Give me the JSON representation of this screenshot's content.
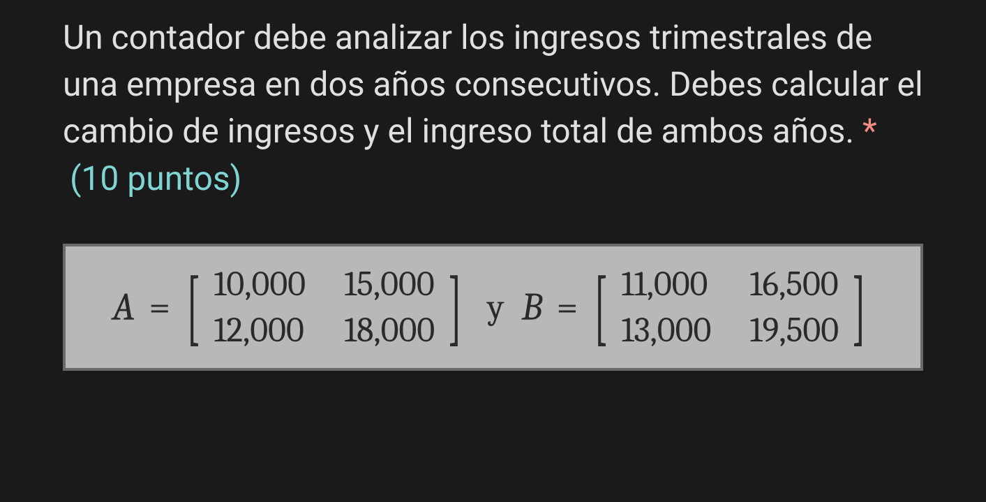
{
  "question": {
    "text": "Un contador debe analizar los ingresos trimestrales de una empresa en dos años consecutivos. Debes calcular el cambio de ingresos y el ingreso total de ambos años.",
    "required_marker": "*",
    "points_label": "(10 puntos)"
  },
  "matrices": {
    "A": {
      "label": "A",
      "equals": "=",
      "rows": [
        [
          "10,000",
          "15,000"
        ],
        [
          "12,000",
          "18,000"
        ]
      ]
    },
    "conjunction": "y",
    "B": {
      "label": "B",
      "equals": "=",
      "rows": [
        [
          "11,000",
          "16,500"
        ],
        [
          "13,000",
          "19,500"
        ]
      ]
    }
  },
  "colors": {
    "background": "#1a1a1a",
    "text_primary": "#e0e0e0",
    "required": "#f28b82",
    "points": "#7fd4d4",
    "matrix_box_bg": "#b8b8b8",
    "matrix_box_border": "#6a6a6a",
    "math_text": "#2a2a2a"
  },
  "typography": {
    "body_fontsize": 48,
    "math_label_fontsize": 56,
    "math_cell_fontsize": 50,
    "body_font": "Roboto, Helvetica Neue, Arial, sans-serif",
    "math_font": "Cambria, Georgia, serif"
  }
}
